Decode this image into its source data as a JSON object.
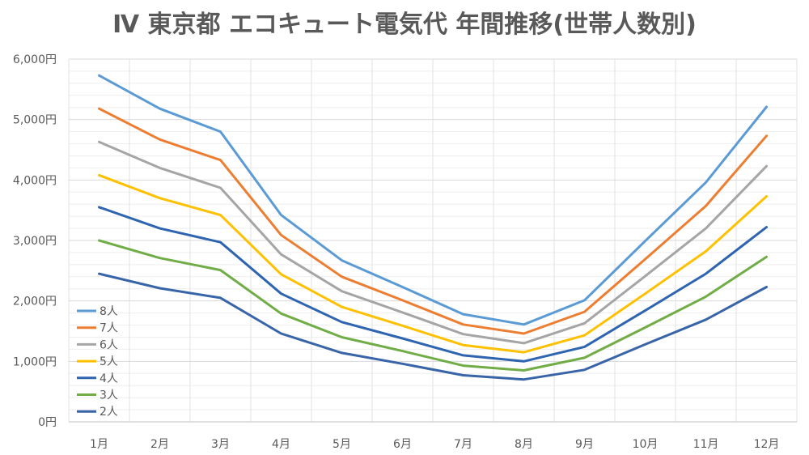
{
  "chart_data": {
    "type": "line",
    "title": "Ⅳ 東京都 エコキュート電気代 年間推移(世帯人数別)",
    "xlabel": "",
    "ylabel": "",
    "categories": [
      "1月",
      "2月",
      "3月",
      "4月",
      "5月",
      "6月",
      "7月",
      "8月",
      "9月",
      "10月",
      "11月",
      "12月"
    ],
    "ylim": [
      0,
      6000
    ],
    "yticks": [
      0,
      1000,
      2000,
      3000,
      4000,
      5000,
      6000
    ],
    "ytick_labels": [
      "0円",
      "1,000円",
      "2,000円",
      "3,000円",
      "4,000円",
      "5,000円",
      "6,000円"
    ],
    "grid": true,
    "legend_position": "bottom-left",
    "series": [
      {
        "name": "8人",
        "color": "#5B9BD5",
        "values": [
          5730,
          5180,
          4800,
          3420,
          2670,
          2230,
          1780,
          1610,
          2010,
          2990,
          3960,
          5210
        ]
      },
      {
        "name": "7人",
        "color": "#ED7D31",
        "values": [
          5180,
          4670,
          4330,
          3090,
          2400,
          2010,
          1610,
          1460,
          1820,
          2690,
          3570,
          4730
        ]
      },
      {
        "name": "6人",
        "color": "#A5A5A5",
        "values": [
          4630,
          4200,
          3870,
          2770,
          2160,
          1810,
          1450,
          1300,
          1630,
          2410,
          3200,
          4230
        ]
      },
      {
        "name": "5人",
        "color": "#FFC000",
        "values": [
          4080,
          3700,
          3420,
          2440,
          1900,
          1590,
          1270,
          1150,
          1430,
          2120,
          2820,
          3730
        ]
      },
      {
        "name": "4人",
        "color": "#2E64B0",
        "values": [
          3550,
          3200,
          2970,
          2120,
          1650,
          1380,
          1100,
          1000,
          1240,
          1840,
          2450,
          3220
        ]
      },
      {
        "name": "3人",
        "color": "#70AD47",
        "values": [
          3000,
          2710,
          2510,
          1790,
          1400,
          1170,
          930,
          850,
          1060,
          1560,
          2070,
          2730
        ]
      },
      {
        "name": "2人",
        "color": "#3864A8",
        "values": [
          2450,
          2210,
          2050,
          1460,
          1140,
          960,
          770,
          700,
          860,
          1280,
          1690,
          2230
        ]
      }
    ]
  }
}
